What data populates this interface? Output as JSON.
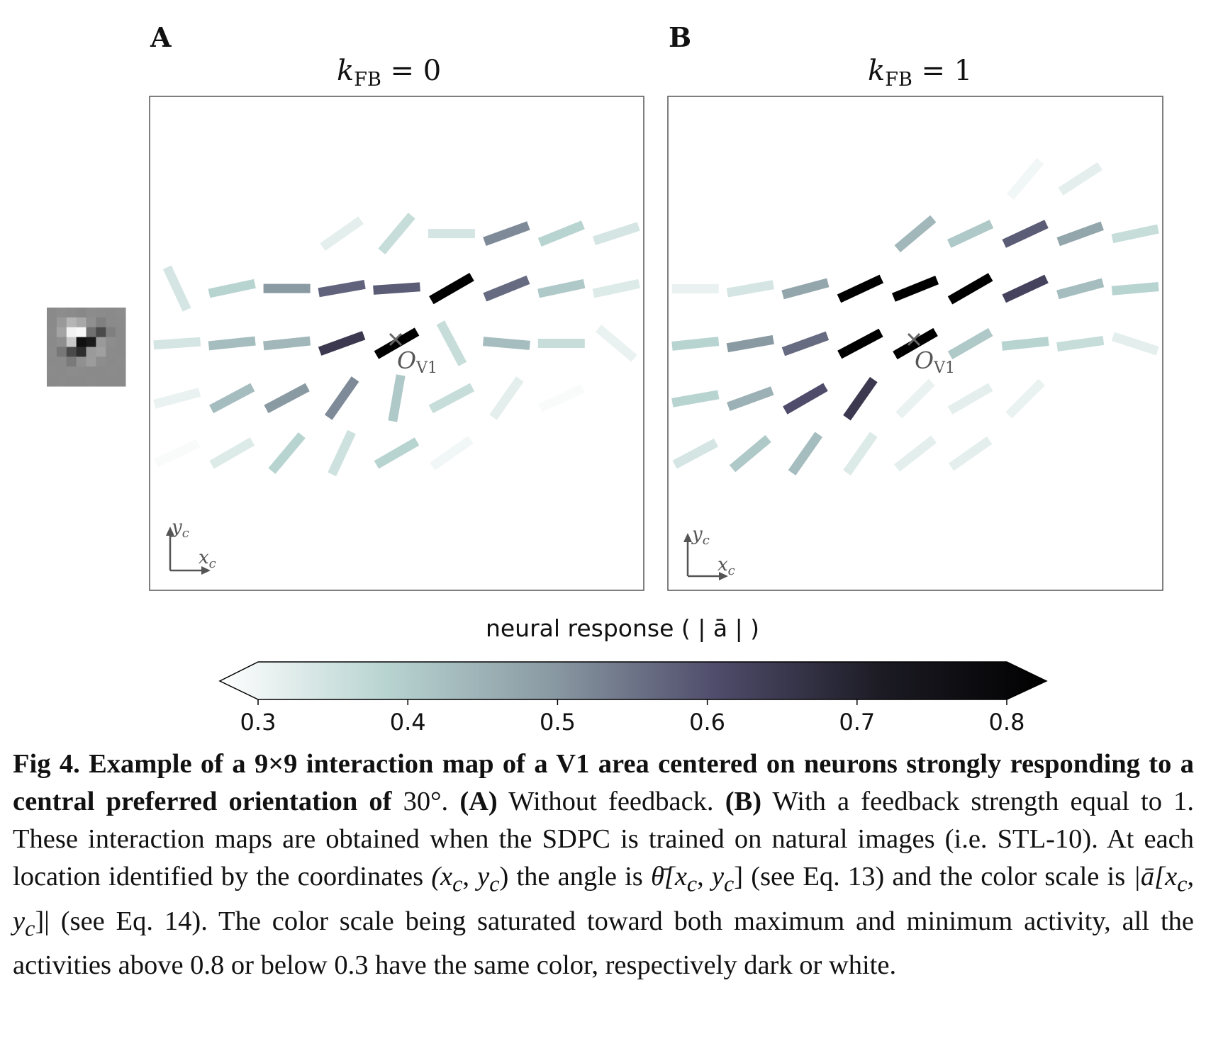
{
  "figure": {
    "patch_colors": [
      [
        "#8a8a8a",
        "#8d8d8d",
        "#8b8b8b",
        "#888888",
        "#8c8c8c",
        "#8b8b8b",
        "#8a8a8a",
        "#8c8c8c"
      ],
      [
        "#8a8a8a",
        "#999999",
        "#b5b5b5",
        "#a8a8a8",
        "#8f8f8f",
        "#808080",
        "#8a8a8a",
        "#8b8b8b"
      ],
      [
        "#8b8b8b",
        "#a3a3a3",
        "#f2f2f2",
        "#f8f8f8",
        "#707070",
        "#4a4a4a",
        "#7f7f7f",
        "#8a8a8a"
      ],
      [
        "#8a8a8a",
        "#8e8e8e",
        "#c8c8c8",
        "#101010",
        "#1a1a1a",
        "#9a9a9a",
        "#8d8d8d",
        "#8a8a8a"
      ],
      [
        "#8b8b8b",
        "#777777",
        "#4a4a4a",
        "#2d2d2d",
        "#9a9a9a",
        "#a0a0a0",
        "#8b8b8b",
        "#8a8a8a"
      ],
      [
        "#8a8a8a",
        "#8a8a8a",
        "#7a7a7a",
        "#909090",
        "#9c9c9c",
        "#8d8d8d",
        "#8a8a8a",
        "#8b8b8b"
      ],
      [
        "#8b8b8b",
        "#8a8a8a",
        "#8c8c8c",
        "#8b8b8b",
        "#8a8a8a",
        "#8a8a8a",
        "#8b8b8b",
        "#8a8a8a"
      ],
      [
        "#8a8a8a",
        "#8b8b8b",
        "#8a8a8a",
        "#8a8a8a",
        "#8b8b8b",
        "#8a8a8a",
        "#8a8a8a",
        "#8a8a8a"
      ]
    ],
    "panels": [
      {
        "letter": "A",
        "title_k": "k",
        "title_sub": "FB",
        "title_rest": " = 0",
        "center_label": "O",
        "center_sub": "V1",
        "axis_y": "y",
        "axis_x": "x",
        "axis_sub": "c",
        "segments": [
          {
            "col": 4,
            "row": 0,
            "angle": 50,
            "value": 0.3
          },
          {
            "col": 3,
            "row": 1,
            "angle": 35,
            "value": 0.34
          },
          {
            "col": 4,
            "row": 1,
            "angle": 50,
            "value": 0.38
          },
          {
            "col": 5,
            "row": 1,
            "angle": 0,
            "value": 0.36
          },
          {
            "col": 6,
            "row": 1,
            "angle": 20,
            "value": 0.52
          },
          {
            "col": 7,
            "row": 1,
            "angle": 22,
            "value": 0.4
          },
          {
            "col": 8,
            "row": 1,
            "angle": 18,
            "value": 0.36
          },
          {
            "col": 0,
            "row": 2,
            "angle": -65,
            "value": 0.36
          },
          {
            "col": 1,
            "row": 2,
            "angle": 12,
            "value": 0.4
          },
          {
            "col": 2,
            "row": 2,
            "angle": 0,
            "value": 0.5
          },
          {
            "col": 3,
            "row": 2,
            "angle": 10,
            "value": 0.57
          },
          {
            "col": 4,
            "row": 2,
            "angle": 4,
            "value": 0.58
          },
          {
            "col": 5,
            "row": 2,
            "angle": 30,
            "value": 0.82
          },
          {
            "col": 6,
            "row": 2,
            "angle": 22,
            "value": 0.56
          },
          {
            "col": 7,
            "row": 2,
            "angle": 12,
            "value": 0.42
          },
          {
            "col": 8,
            "row": 2,
            "angle": 12,
            "value": 0.35
          },
          {
            "col": 0,
            "row": 3,
            "angle": 4,
            "value": 0.36
          },
          {
            "col": 1,
            "row": 3,
            "angle": 6,
            "value": 0.44
          },
          {
            "col": 2,
            "row": 3,
            "angle": 6,
            "value": 0.45
          },
          {
            "col": 3,
            "row": 3,
            "angle": 20,
            "value": 0.64
          },
          {
            "col": 4,
            "row": 3,
            "angle": 30,
            "value": 0.8
          },
          {
            "col": 5,
            "row": 3,
            "angle": -62,
            "value": 0.38
          },
          {
            "col": 6,
            "row": 3,
            "angle": -5,
            "value": 0.44
          },
          {
            "col": 7,
            "row": 3,
            "angle": 0,
            "value": 0.38
          },
          {
            "col": 8,
            "row": 3,
            "angle": -40,
            "value": 0.33
          },
          {
            "col": 0,
            "row": 4,
            "angle": 15,
            "value": 0.33
          },
          {
            "col": 1,
            "row": 4,
            "angle": 28,
            "value": 0.44
          },
          {
            "col": 2,
            "row": 4,
            "angle": 28,
            "value": 0.5
          },
          {
            "col": 3,
            "row": 4,
            "angle": 55,
            "value": 0.52
          },
          {
            "col": 4,
            "row": 4,
            "angle": 80,
            "value": 0.42
          },
          {
            "col": 5,
            "row": 4,
            "angle": 28,
            "value": 0.38
          },
          {
            "col": 6,
            "row": 4,
            "angle": 55,
            "value": 0.34
          },
          {
            "col": 7,
            "row": 4,
            "angle": 25,
            "value": 0.31
          },
          {
            "col": 0,
            "row": 5,
            "angle": 25,
            "value": 0.31
          },
          {
            "col": 1,
            "row": 5,
            "angle": 30,
            "value": 0.35
          },
          {
            "col": 2,
            "row": 5,
            "angle": 50,
            "value": 0.4
          },
          {
            "col": 3,
            "row": 5,
            "angle": 65,
            "value": 0.37
          },
          {
            "col": 4,
            "row": 5,
            "angle": 30,
            "value": 0.4
          },
          {
            "col": 5,
            "row": 5,
            "angle": 35,
            "value": 0.32
          }
        ]
      },
      {
        "letter": "B",
        "title_k": "k",
        "title_sub": "FB",
        "title_rest": " = 1",
        "center_label": "O",
        "center_sub": "V1",
        "axis_y": "y",
        "axis_x": "x",
        "axis_sub": "c",
        "segments": [
          {
            "col": 6,
            "row": 0,
            "angle": 50,
            "value": 0.32
          },
          {
            "col": 7,
            "row": 0,
            "angle": 33,
            "value": 0.34
          },
          {
            "col": 8,
            "row": 0,
            "angle": 30,
            "value": 0.3
          },
          {
            "col": 4,
            "row": 1,
            "angle": 40,
            "value": 0.45
          },
          {
            "col": 5,
            "row": 1,
            "angle": 25,
            "value": 0.42
          },
          {
            "col": 6,
            "row": 1,
            "angle": 25,
            "value": 0.58
          },
          {
            "col": 7,
            "row": 1,
            "angle": 20,
            "value": 0.48
          },
          {
            "col": 8,
            "row": 1,
            "angle": 12,
            "value": 0.38
          },
          {
            "col": 0,
            "row": 2,
            "angle": 0,
            "value": 0.33
          },
          {
            "col": 1,
            "row": 2,
            "angle": 10,
            "value": 0.36
          },
          {
            "col": 2,
            "row": 2,
            "angle": 15,
            "value": 0.48
          },
          {
            "col": 3,
            "row": 2,
            "angle": 25,
            "value": 0.8
          },
          {
            "col": 4,
            "row": 2,
            "angle": 22,
            "value": 0.8
          },
          {
            "col": 5,
            "row": 2,
            "angle": 30,
            "value": 0.8
          },
          {
            "col": 6,
            "row": 2,
            "angle": 25,
            "value": 0.62
          },
          {
            "col": 7,
            "row": 2,
            "angle": 15,
            "value": 0.44
          },
          {
            "col": 8,
            "row": 2,
            "angle": 5,
            "value": 0.4
          },
          {
            "col": 0,
            "row": 3,
            "angle": 6,
            "value": 0.4
          },
          {
            "col": 1,
            "row": 3,
            "angle": 10,
            "value": 0.5
          },
          {
            "col": 2,
            "row": 3,
            "angle": 20,
            "value": 0.56
          },
          {
            "col": 3,
            "row": 3,
            "angle": 28,
            "value": 0.8
          },
          {
            "col": 4,
            "row": 3,
            "angle": 30,
            "value": 0.8
          },
          {
            "col": 5,
            "row": 3,
            "angle": 30,
            "value": 0.42
          },
          {
            "col": 6,
            "row": 3,
            "angle": 6,
            "value": 0.4
          },
          {
            "col": 7,
            "row": 3,
            "angle": 8,
            "value": 0.38
          },
          {
            "col": 8,
            "row": 3,
            "angle": -18,
            "value": 0.34
          },
          {
            "col": 0,
            "row": 4,
            "angle": 10,
            "value": 0.4
          },
          {
            "col": 1,
            "row": 4,
            "angle": 20,
            "value": 0.46
          },
          {
            "col": 2,
            "row": 4,
            "angle": 30,
            "value": 0.6
          },
          {
            "col": 3,
            "row": 4,
            "angle": 55,
            "value": 0.64
          },
          {
            "col": 4,
            "row": 4,
            "angle": 45,
            "value": 0.33
          },
          {
            "col": 5,
            "row": 4,
            "angle": 30,
            "value": 0.34
          },
          {
            "col": 6,
            "row": 4,
            "angle": 45,
            "value": 0.33
          },
          {
            "col": 7,
            "row": 4,
            "angle": 50,
            "value": 0.3
          },
          {
            "col": 0,
            "row": 5,
            "angle": 28,
            "value": 0.36
          },
          {
            "col": 1,
            "row": 5,
            "angle": 40,
            "value": 0.42
          },
          {
            "col": 2,
            "row": 5,
            "angle": 55,
            "value": 0.44
          },
          {
            "col": 3,
            "row": 5,
            "angle": 55,
            "value": 0.35
          },
          {
            "col": 4,
            "row": 5,
            "angle": 38,
            "value": 0.34
          },
          {
            "col": 5,
            "row": 5,
            "angle": 35,
            "value": 0.34
          },
          {
            "col": 1,
            "row": 6,
            "angle": 45,
            "value": 0.3
          },
          {
            "col": 2,
            "row": 6,
            "angle": 50,
            "value": 0.3
          }
        ]
      }
    ],
    "colorbar": {
      "label": "neural response ( | ā | )",
      "min": 0.3,
      "max": 0.8,
      "ticks": [
        0.3,
        0.4,
        0.5,
        0.6,
        0.7,
        0.8
      ],
      "tick_labels": [
        "0.3",
        "0.4",
        "0.5",
        "0.6",
        "0.7",
        "0.8"
      ],
      "colormap": [
        "#ffffff",
        "#b8d4d1",
        "#8a9aa3",
        "#4f4c6b",
        "#1c1b24",
        "#000000"
      ]
    }
  },
  "caption": {
    "fig_label": "Fig 4.",
    "bold_title": "Example of a 9×9 interaction map of a V1 area centered on neurons strongly responding to a central preferred orientation of",
    "angle_value": "30°.",
    "panel_a": "(A)",
    "panel_a_text": "Without feedback.",
    "panel_b": "(B)",
    "body_1": "With a feedback strength equal to 1. These interaction maps are obtained when the SDPC is trained on natural images (i.e. STL-10). At each location identified by the coordinates",
    "coords": "(x",
    "body_2": "the angle is",
    "theta_expr": "θ̄[x",
    "body_3": "(see Eq. 13) and the color scale is",
    "a_expr": "|ā[x",
    "body_4": "(see Eq. 14). The color scale being saturated toward both maximum and minimum activity, all the activities above 0.8 or below 0.3 have the same color, respectively dark or white.",
    "sub_c": "c",
    "y_symbol": "y",
    "comma": ", ",
    "close_paren": ")",
    "close_bracket": "]",
    "close_abs": "]|"
  }
}
